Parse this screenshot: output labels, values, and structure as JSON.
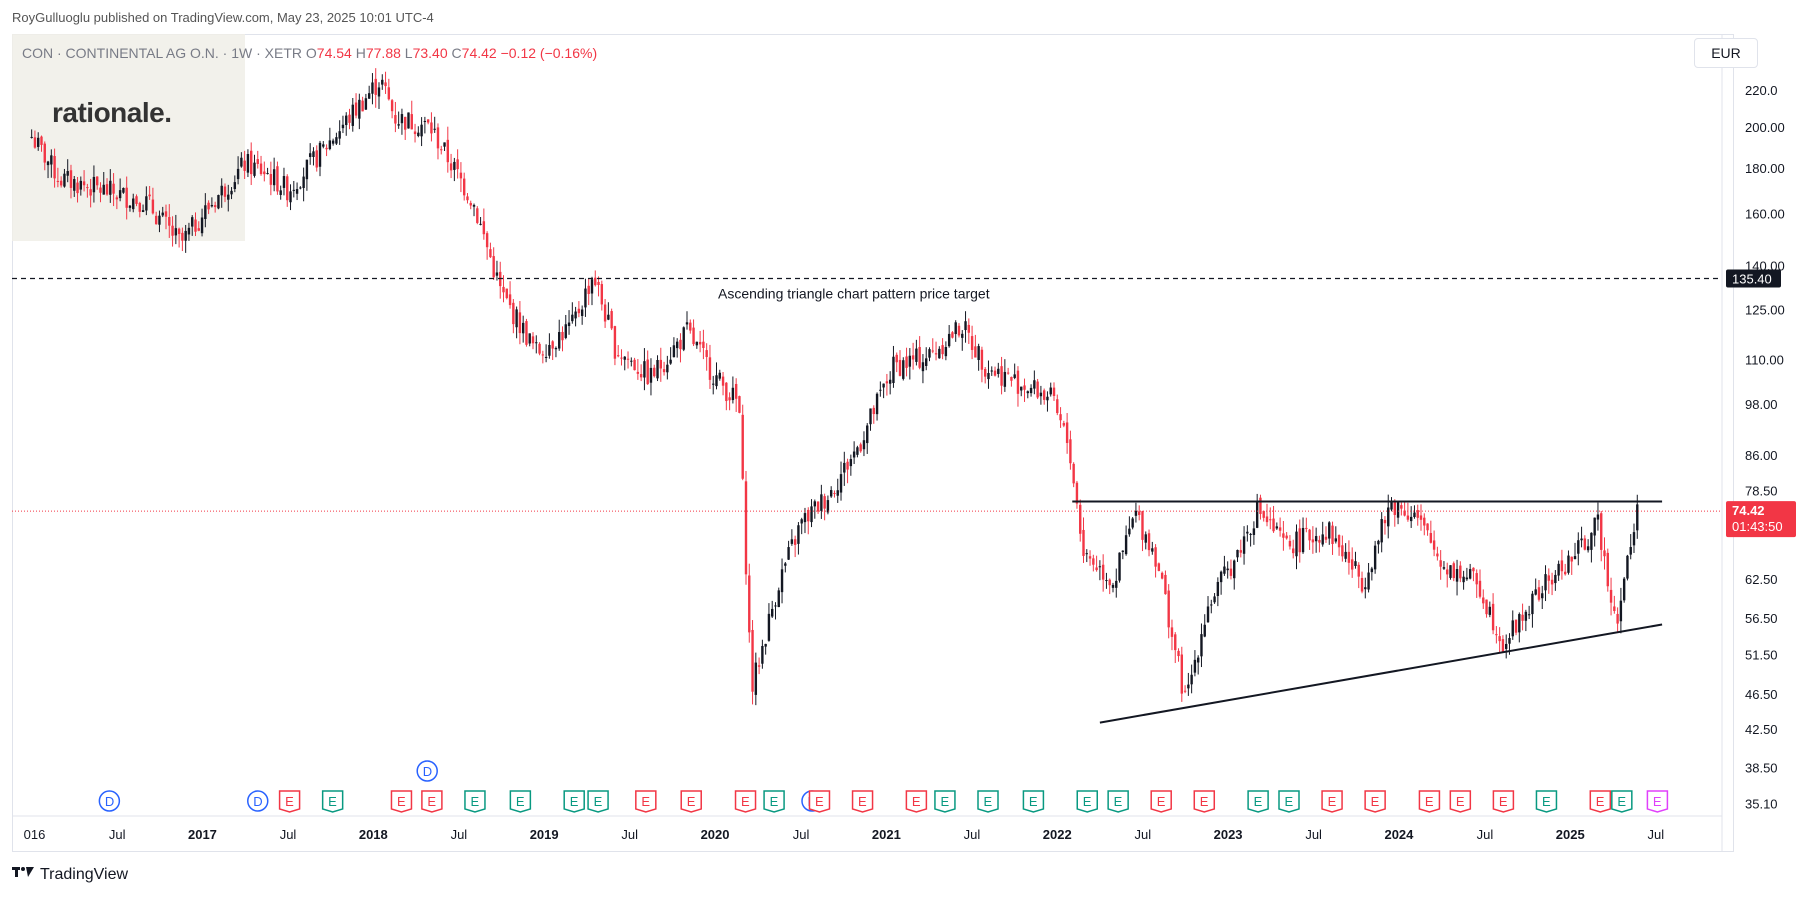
{
  "header": {
    "publisher": "RoyGulluoglu published on TradingView.com, May 23, 2025 10:01 UTC-4"
  },
  "legend": {
    "symbol": "CON · CONTINENTAL AG O.N. · 1W · XETR",
    "o_label": "O",
    "o_value": "74.54",
    "h_label": "H",
    "h_value": "77.88",
    "l_label": "L",
    "l_value": "73.40",
    "c_label": "C",
    "c_value": "74.42",
    "change": "−0.12 (−0.16%)"
  },
  "watermark": {
    "text": "rationale."
  },
  "currency": "EUR",
  "footer": {
    "brand": "TradingView"
  },
  "colors": {
    "up": "#131722",
    "down": "#f23645",
    "grid": "#e0e3eb",
    "dashed": "#131722"
  },
  "chart_data": {
    "type": "candlestick",
    "symbol": "CON",
    "interval": "1W",
    "currency": "EUR",
    "y_scale": "log",
    "ylim": [
      34.5,
      240
    ],
    "y_ticks": [
      "220.0",
      "200.00",
      "180.00",
      "160.00",
      "140.00",
      "125.00",
      "110.00",
      "98.00",
      "86.00",
      "78.50",
      "62.50",
      "56.50",
      "51.50",
      "46.50",
      "42.50",
      "38.50",
      "35.10"
    ],
    "y_tick_values": [
      220,
      200,
      180,
      160,
      140,
      125,
      110,
      98,
      86,
      78.5,
      62.5,
      56.5,
      51.5,
      46.5,
      42.5,
      38.5,
      35.1
    ],
    "x_ticks": [
      "016",
      "Jul",
      "2017",
      "Jul",
      "2018",
      "Jul",
      "2019",
      "Jul",
      "2020",
      "Jul",
      "2021",
      "Jul",
      "2022",
      "Jul",
      "2023",
      "Jul",
      "2024",
      "Jul",
      "2025",
      "Jul"
    ],
    "x_tick_dates": [
      "2016-01-01",
      "2016-07-01",
      "2017-01-01",
      "2017-07-01",
      "2018-01-01",
      "2018-07-01",
      "2019-01-01",
      "2019-07-01",
      "2020-01-01",
      "2020-07-01",
      "2021-01-01",
      "2021-07-01",
      "2022-01-01",
      "2022-07-01",
      "2023-01-01",
      "2023-07-01",
      "2024-01-01",
      "2024-07-01",
      "2025-01-01",
      "2025-07-01"
    ],
    "price_path": [
      [
        "2016-01-01",
        195
      ],
      [
        "2016-03-01",
        175
      ],
      [
        "2016-06-01",
        170
      ],
      [
        "2016-09-01",
        165
      ],
      [
        "2016-11-15",
        148
      ],
      [
        "2017-01-01",
        160
      ],
      [
        "2017-04-01",
        182
      ],
      [
        "2017-05-15",
        178
      ],
      [
        "2017-07-01",
        170
      ],
      [
        "2017-09-01",
        185
      ],
      [
        "2018-01-15",
        226
      ],
      [
        "2018-02-15",
        205
      ],
      [
        "2018-05-01",
        200
      ],
      [
        "2018-06-15",
        182
      ],
      [
        "2018-08-01",
        165
      ],
      [
        "2018-10-01",
        130
      ],
      [
        "2018-12-15",
        112
      ],
      [
        "2019-03-01",
        120
      ],
      [
        "2019-04-15",
        137
      ],
      [
        "2019-06-01",
        113
      ],
      [
        "2019-08-15",
        105
      ],
      [
        "2019-11-01",
        118
      ],
      [
        "2020-01-01",
        105
      ],
      [
        "2020-02-20",
        98
      ],
      [
        "2020-03-18",
        47
      ],
      [
        "2020-05-15",
        62
      ],
      [
        "2020-07-01",
        72
      ],
      [
        "2020-09-01",
        78
      ],
      [
        "2020-11-01",
        88
      ],
      [
        "2021-01-15",
        108
      ],
      [
        "2021-04-01",
        111
      ],
      [
        "2021-06-10",
        120
      ],
      [
        "2021-08-01",
        108
      ],
      [
        "2021-10-01",
        104
      ],
      [
        "2021-12-15",
        100
      ],
      [
        "2022-01-25",
        88
      ],
      [
        "2022-02-25",
        67
      ],
      [
        "2022-05-01",
        62
      ],
      [
        "2022-06-15",
        74
      ],
      [
        "2022-08-01",
        66
      ],
      [
        "2022-10-01",
        45.5
      ],
      [
        "2022-11-15",
        58
      ],
      [
        "2023-01-15",
        66
      ],
      [
        "2023-03-05",
        75
      ],
      [
        "2023-05-01",
        68
      ],
      [
        "2023-08-01",
        71
      ],
      [
        "2023-10-15",
        62
      ],
      [
        "2023-12-15",
        76
      ],
      [
        "2024-02-01",
        74
      ],
      [
        "2024-04-01",
        65
      ],
      [
        "2024-06-15",
        62
      ],
      [
        "2024-08-10",
        53
      ],
      [
        "2024-11-01",
        61
      ],
      [
        "2025-01-15",
        67
      ],
      [
        "2025-03-01",
        72
      ],
      [
        "2025-04-08",
        56
      ],
      [
        "2025-05-23",
        74.42
      ]
    ],
    "last": {
      "open": 74.54,
      "high": 77.88,
      "low": 73.4,
      "close": 74.42,
      "change": -0.12,
      "change_pct": -0.16
    },
    "current_price_label": "74.42",
    "countdown_label": "01:43:50",
    "target_label": "135.40",
    "target_value": 135.4,
    "annotations": [
      {
        "kind": "horizontal-dashed",
        "value": 135.4,
        "text": "Ascending triangle chart pattern price target"
      },
      {
        "kind": "segment",
        "name": "resistance",
        "from": [
          "2022-02-01",
          76.3
        ],
        "to": [
          "2025-07-15",
          76.3
        ]
      },
      {
        "kind": "segment",
        "name": "support",
        "from": [
          "2022-04-01",
          43.2
        ],
        "to": [
          "2025-07-15",
          55.6
        ]
      }
    ],
    "events": [
      {
        "date": "2016-06-15",
        "type": "D"
      },
      {
        "date": "2017-04-28",
        "type": "D"
      },
      {
        "date": "2017-07-05",
        "type": "E",
        "color": "red"
      },
      {
        "date": "2017-10-05",
        "type": "E",
        "color": "green"
      },
      {
        "date": "2018-03-01",
        "type": "E",
        "color": "red"
      },
      {
        "date": "2018-04-25",
        "type": "D",
        "row": 2
      },
      {
        "date": "2018-05-05",
        "type": "E",
        "color": "red"
      },
      {
        "date": "2018-08-05",
        "type": "E",
        "color": "green"
      },
      {
        "date": "2018-11-10",
        "type": "E",
        "color": "green"
      },
      {
        "date": "2019-03-05",
        "type": "E",
        "color": "green"
      },
      {
        "date": "2019-04-25",
        "type": "E",
        "color": "green"
      },
      {
        "date": "2019-08-05",
        "type": "E",
        "color": "red"
      },
      {
        "date": "2019-11-10",
        "type": "E",
        "color": "red"
      },
      {
        "date": "2020-03-05",
        "type": "E",
        "color": "red"
      },
      {
        "date": "2020-05-05",
        "type": "E",
        "color": "green"
      },
      {
        "date": "2020-07-25",
        "type": "D"
      },
      {
        "date": "2020-08-10",
        "type": "E",
        "color": "red"
      },
      {
        "date": "2020-11-10",
        "type": "E",
        "color": "red"
      },
      {
        "date": "2021-03-05",
        "type": "E",
        "color": "red"
      },
      {
        "date": "2021-05-05",
        "type": "E",
        "color": "green"
      },
      {
        "date": "2021-08-05",
        "type": "E",
        "color": "green"
      },
      {
        "date": "2021-11-10",
        "type": "E",
        "color": "green"
      },
      {
        "date": "2022-03-05",
        "type": "E",
        "color": "green"
      },
      {
        "date": "2022-05-10",
        "type": "E",
        "color": "green"
      },
      {
        "date": "2022-08-10",
        "type": "E",
        "color": "red"
      },
      {
        "date": "2022-11-10",
        "type": "E",
        "color": "red"
      },
      {
        "date": "2023-03-05",
        "type": "E",
        "color": "green"
      },
      {
        "date": "2023-05-10",
        "type": "E",
        "color": "green"
      },
      {
        "date": "2023-08-10",
        "type": "E",
        "color": "red"
      },
      {
        "date": "2023-11-10",
        "type": "E",
        "color": "red"
      },
      {
        "date": "2024-03-05",
        "type": "E",
        "color": "red"
      },
      {
        "date": "2024-05-10",
        "type": "E",
        "color": "red"
      },
      {
        "date": "2024-08-10",
        "type": "E",
        "color": "red"
      },
      {
        "date": "2024-11-10",
        "type": "E",
        "color": "green"
      },
      {
        "date": "2025-03-05",
        "type": "E",
        "color": "red"
      },
      {
        "date": "2025-04-20",
        "type": "E",
        "color": "green"
      },
      {
        "date": "2025-07-05",
        "type": "E",
        "color": "purple"
      }
    ]
  }
}
